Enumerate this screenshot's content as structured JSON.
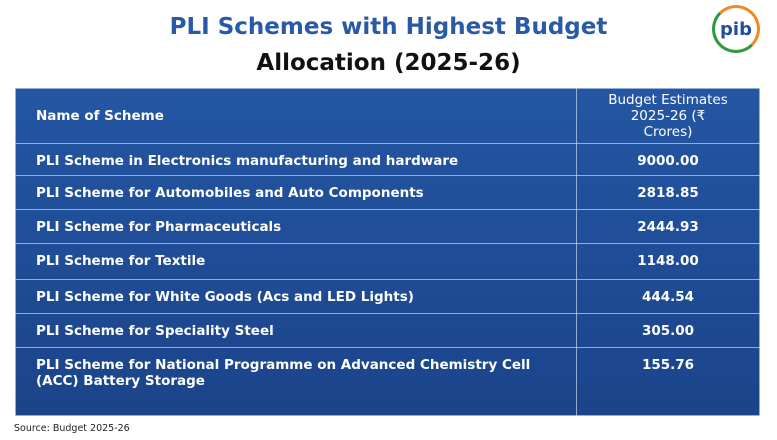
{
  "header": {
    "title": "PLI Schemes with Highest Budget",
    "subtitle": "Allocation (2025-26)",
    "logo": "pib"
  },
  "table": {
    "columns": [
      "Name of Scheme",
      "Budget Estimates 2025-26 (₹ Crores)"
    ],
    "rows": [
      [
        "PLI Scheme in Electronics manufacturing and hardware",
        "9000.00"
      ],
      [
        "PLI Scheme for Automobiles and Auto Components",
        "2818.85"
      ],
      [
        "PLI Scheme for Pharmaceuticals",
        "2444.93"
      ],
      [
        "PLI Scheme for Textile",
        "1148.00"
      ],
      [
        "PLI Scheme for White Goods (Acs and LED Lights)",
        "444.54"
      ],
      [
        "PLI Scheme for Speciality Steel",
        "305.00"
      ],
      [
        "PLI Scheme for National Programme on Advanced Chemistry Cell (ACC) Battery Storage",
        "155.76"
      ]
    ]
  },
  "footer": {
    "source": "Source: Budget 2025-26"
  }
}
